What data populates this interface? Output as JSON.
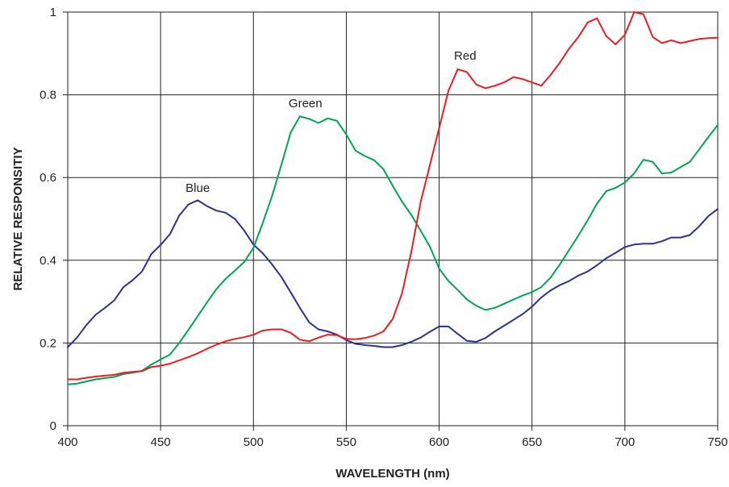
{
  "chart_data": {
    "type": "line",
    "title": "",
    "xlabel": "WAVELENGTH (nm)",
    "ylabel": "RELATIVE RESPONSITIY",
    "xlim": [
      400,
      750
    ],
    "ylim": [
      0,
      1
    ],
    "xticks": [
      400,
      450,
      500,
      550,
      600,
      650,
      700,
      750
    ],
    "yticks": [
      0,
      0.2,
      0.4,
      0.6,
      0.8,
      1
    ],
    "ytick_labels": [
      "0",
      "0.2",
      "0.4",
      "0.6",
      "0.8",
      "1"
    ],
    "grid": true,
    "legend": "none",
    "series": [
      {
        "name": "Blue",
        "color": "#2e3192",
        "x": [
          400,
          405,
          410,
          415,
          420,
          425,
          430,
          435,
          440,
          445,
          450,
          455,
          460,
          465,
          470,
          475,
          480,
          485,
          490,
          495,
          500,
          505,
          510,
          515,
          520,
          525,
          530,
          535,
          540,
          545,
          550,
          555,
          560,
          565,
          570,
          575,
          580,
          585,
          590,
          595,
          600,
          605,
          610,
          615,
          620,
          625,
          630,
          635,
          640,
          645,
          650,
          655,
          660,
          665,
          670,
          675,
          680,
          685,
          690,
          695,
          700,
          705,
          710,
          715,
          720,
          725,
          730,
          735,
          740,
          745,
          750
        ],
        "y": [
          0.19,
          0.213,
          0.243,
          0.268,
          0.285,
          0.303,
          0.335,
          0.352,
          0.373,
          0.415,
          0.437,
          0.463,
          0.508,
          0.535,
          0.545,
          0.531,
          0.52,
          0.515,
          0.5,
          0.472,
          0.438,
          0.417,
          0.39,
          0.36,
          0.323,
          0.285,
          0.25,
          0.233,
          0.228,
          0.22,
          0.207,
          0.198,
          0.195,
          0.193,
          0.19,
          0.19,
          0.195,
          0.203,
          0.213,
          0.227,
          0.24,
          0.24,
          0.222,
          0.205,
          0.203,
          0.212,
          0.228,
          0.242,
          0.256,
          0.27,
          0.288,
          0.31,
          0.327,
          0.34,
          0.35,
          0.363,
          0.373,
          0.388,
          0.405,
          0.418,
          0.432,
          0.438,
          0.44,
          0.44,
          0.446,
          0.455,
          0.455,
          0.461,
          0.482,
          0.507,
          0.524
        ]
      },
      {
        "name": "Green",
        "color": "#00a651",
        "x": [
          400,
          405,
          410,
          415,
          420,
          425,
          430,
          435,
          440,
          445,
          450,
          455,
          460,
          465,
          470,
          475,
          480,
          485,
          490,
          495,
          500,
          505,
          510,
          515,
          520,
          525,
          530,
          535,
          540,
          545,
          550,
          555,
          560,
          565,
          570,
          575,
          580,
          585,
          590,
          595,
          600,
          605,
          610,
          615,
          620,
          625,
          630,
          635,
          640,
          645,
          650,
          655,
          660,
          665,
          670,
          675,
          680,
          685,
          690,
          695,
          700,
          705,
          710,
          715,
          720,
          725,
          730,
          735,
          740,
          745,
          750
        ],
        "y": [
          0.1,
          0.102,
          0.107,
          0.112,
          0.115,
          0.118,
          0.125,
          0.128,
          0.133,
          0.148,
          0.16,
          0.172,
          0.2,
          0.232,
          0.265,
          0.298,
          0.33,
          0.355,
          0.375,
          0.396,
          0.43,
          0.49,
          0.555,
          0.63,
          0.708,
          0.748,
          0.742,
          0.732,
          0.743,
          0.737,
          0.704,
          0.665,
          0.652,
          0.642,
          0.62,
          0.58,
          0.542,
          0.51,
          0.472,
          0.433,
          0.38,
          0.35,
          0.328,
          0.305,
          0.29,
          0.28,
          0.285,
          0.295,
          0.305,
          0.315,
          0.323,
          0.335,
          0.358,
          0.39,
          0.425,
          0.46,
          0.497,
          0.537,
          0.567,
          0.575,
          0.588,
          0.61,
          0.643,
          0.638,
          0.61,
          0.612,
          0.625,
          0.638,
          0.668,
          0.698,
          0.727
        ]
      },
      {
        "name": "Red",
        "color": "#ed1c24",
        "x": [
          400,
          405,
          410,
          415,
          420,
          425,
          430,
          435,
          440,
          445,
          450,
          455,
          460,
          465,
          470,
          475,
          480,
          485,
          490,
          495,
          500,
          505,
          510,
          515,
          520,
          525,
          530,
          535,
          540,
          545,
          550,
          555,
          560,
          565,
          570,
          575,
          580,
          585,
          590,
          595,
          600,
          605,
          610,
          615,
          620,
          625,
          630,
          635,
          640,
          645,
          650,
          655,
          660,
          665,
          670,
          675,
          680,
          685,
          690,
          695,
          700,
          705,
          710,
          715,
          720,
          725,
          730,
          735,
          740,
          745,
          750
        ],
        "y": [
          0.112,
          0.112,
          0.116,
          0.119,
          0.121,
          0.123,
          0.128,
          0.13,
          0.132,
          0.142,
          0.145,
          0.15,
          0.158,
          0.166,
          0.175,
          0.186,
          0.196,
          0.204,
          0.21,
          0.214,
          0.22,
          0.23,
          0.233,
          0.233,
          0.225,
          0.208,
          0.204,
          0.213,
          0.22,
          0.219,
          0.21,
          0.209,
          0.212,
          0.218,
          0.228,
          0.258,
          0.32,
          0.42,
          0.54,
          0.63,
          0.72,
          0.81,
          0.862,
          0.855,
          0.825,
          0.816,
          0.822,
          0.83,
          0.843,
          0.838,
          0.83,
          0.822,
          0.848,
          0.878,
          0.912,
          0.94,
          0.975,
          0.985,
          0.942,
          0.922,
          0.945,
          1.0,
          0.995,
          0.94,
          0.925,
          0.932,
          0.925,
          0.93,
          0.935,
          0.937,
          0.938
        ]
      }
    ],
    "annotations": [
      {
        "text": "Blue",
        "x": 470,
        "y": 0.565,
        "series": "Blue"
      },
      {
        "text": "Green",
        "x": 528,
        "y": 0.77,
        "series": "Green"
      },
      {
        "text": "Red",
        "x": 614,
        "y": 0.885,
        "series": "Red"
      }
    ]
  }
}
